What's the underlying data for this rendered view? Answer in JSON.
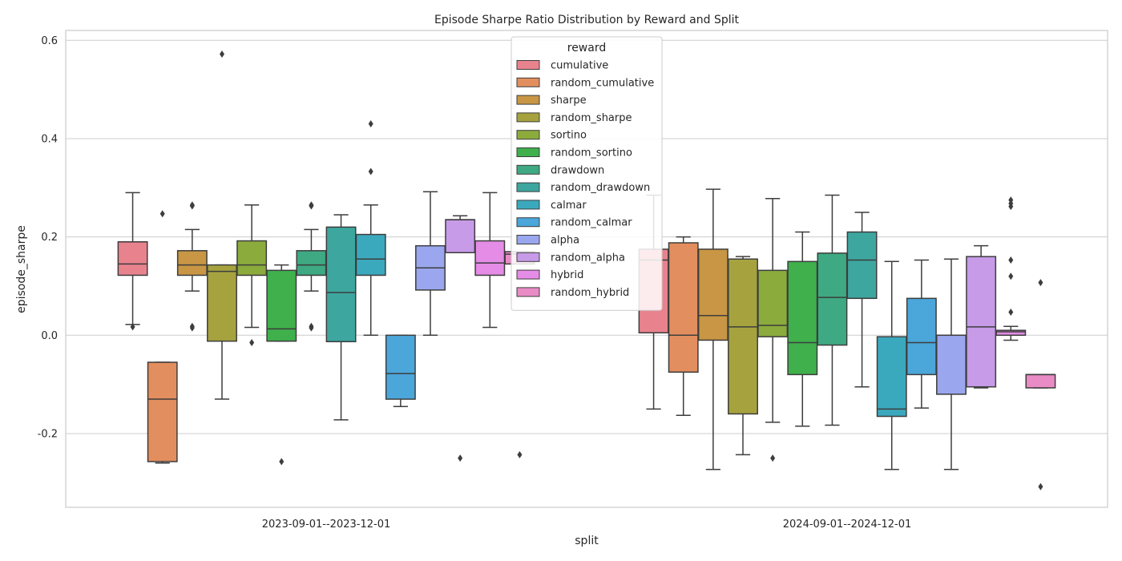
{
  "chart_data": {
    "type": "box",
    "title": "Episode Sharpe Ratio Distribution by Reward and Split",
    "xlabel": "split",
    "ylabel": "episode_sharpe",
    "ylim": [
      -0.35,
      0.62
    ],
    "yticks": [
      -0.2,
      0.0,
      0.2,
      0.4,
      0.6
    ],
    "ytick_labels": [
      "-0.2",
      "0.0",
      "0.2",
      "0.4",
      "0.6"
    ],
    "grid": "horizontal",
    "legend": {
      "title": "reward",
      "position": "top-center"
    },
    "categories": [
      "2023-09-01--2023-12-01",
      "2024-09-01--2024-12-01"
    ],
    "series": [
      {
        "name": "cumulative",
        "color": "#e8838d",
        "boxes": [
          {
            "whislo": 0.022,
            "q1": 0.122,
            "med": 0.145,
            "q3": 0.19,
            "whishi": 0.29,
            "fliers": [
              0.017
            ]
          },
          {
            "whislo": -0.15,
            "q1": 0.005,
            "med": 0.153,
            "q3": 0.175,
            "whishi": 0.285,
            "fliers": []
          }
        ]
      },
      {
        "name": "random_cumulative",
        "color": "#e38e5e",
        "boxes": [
          {
            "whislo": -0.26,
            "q1": -0.257,
            "med": -0.13,
            "q3": -0.055,
            "whishi": -0.055,
            "fliers": [
              0.247
            ]
          },
          {
            "whislo": -0.163,
            "q1": -0.075,
            "med": 0.0,
            "q3": 0.188,
            "whishi": 0.2,
            "fliers": []
          }
        ]
      },
      {
        "name": "sharpe",
        "color": "#c89644",
        "boxes": [
          {
            "whislo": 0.09,
            "q1": 0.122,
            "med": 0.143,
            "q3": 0.172,
            "whishi": 0.215,
            "fliers": [
              0.263,
              0.265,
              0.015,
              0.018
            ]
          },
          {
            "whislo": -0.273,
            "q1": -0.01,
            "med": 0.04,
            "q3": 0.175,
            "whishi": 0.297,
            "fliers": []
          }
        ]
      },
      {
        "name": "random_sharpe",
        "color": "#a6a33f",
        "boxes": [
          {
            "whislo": -0.13,
            "q1": -0.012,
            "med": 0.13,
            "q3": 0.143,
            "whishi": 0.143,
            "fliers": [
              0.572
            ]
          },
          {
            "whislo": -0.243,
            "q1": -0.16,
            "med": 0.017,
            "q3": 0.155,
            "whishi": 0.16,
            "fliers": []
          }
        ]
      },
      {
        "name": "sortino",
        "color": "#8cab3d",
        "boxes": [
          {
            "whislo": 0.016,
            "q1": 0.122,
            "med": 0.143,
            "q3": 0.192,
            "whishi": 0.265,
            "fliers": [
              -0.015
            ]
          },
          {
            "whislo": -0.177,
            "q1": -0.003,
            "med": 0.02,
            "q3": 0.132,
            "whishi": 0.278,
            "fliers": [
              -0.25
            ]
          }
        ]
      },
      {
        "name": "random_sortino",
        "color": "#3fb04c",
        "boxes": [
          {
            "whislo": -0.012,
            "q1": -0.012,
            "med": 0.013,
            "q3": 0.132,
            "whishi": 0.143,
            "fliers": [
              -0.257
            ]
          },
          {
            "whislo": -0.185,
            "q1": -0.08,
            "med": -0.015,
            "q3": 0.15,
            "whishi": 0.21,
            "fliers": []
          }
        ]
      },
      {
        "name": "drawdown",
        "color": "#3ea982",
        "boxes": [
          {
            "whislo": 0.09,
            "q1": 0.122,
            "med": 0.143,
            "q3": 0.172,
            "whishi": 0.215,
            "fliers": [
              0.263,
              0.265,
              0.015,
              0.018
            ]
          },
          {
            "whislo": -0.183,
            "q1": -0.02,
            "med": 0.077,
            "q3": 0.167,
            "whishi": 0.285,
            "fliers": []
          }
        ]
      },
      {
        "name": "random_drawdown",
        "color": "#3da69f",
        "boxes": [
          {
            "whislo": -0.172,
            "q1": -0.013,
            "med": 0.087,
            "q3": 0.22,
            "whishi": 0.245,
            "fliers": []
          },
          {
            "whislo": -0.105,
            "q1": 0.075,
            "med": 0.153,
            "q3": 0.21,
            "whishi": 0.25,
            "fliers": []
          }
        ]
      },
      {
        "name": "calmar",
        "color": "#3ba9bd",
        "boxes": [
          {
            "whislo": 0.0,
            "q1": 0.122,
            "med": 0.155,
            "q3": 0.205,
            "whishi": 0.265,
            "fliers": [
              0.43,
              0.333
            ]
          },
          {
            "whislo": -0.273,
            "q1": -0.165,
            "med": -0.15,
            "q3": -0.003,
            "whishi": 0.15,
            "fliers": []
          }
        ]
      },
      {
        "name": "random_calmar",
        "color": "#4ba6da",
        "boxes": [
          {
            "whislo": -0.145,
            "q1": -0.13,
            "med": -0.078,
            "q3": 0.0,
            "whishi": 0.0,
            "fliers": []
          },
          {
            "whislo": -0.148,
            "q1": -0.08,
            "med": -0.015,
            "q3": 0.075,
            "whishi": 0.153,
            "fliers": []
          }
        ]
      },
      {
        "name": "alpha",
        "color": "#9aa7ee",
        "boxes": [
          {
            "whislo": 0.0,
            "q1": 0.092,
            "med": 0.137,
            "q3": 0.182,
            "whishi": 0.292,
            "fliers": []
          },
          {
            "whislo": -0.273,
            "q1": -0.12,
            "med": 0.0,
            "q3": 0.0,
            "whishi": 0.155,
            "fliers": []
          }
        ]
      },
      {
        "name": "random_alpha",
        "color": "#c79be8",
        "boxes": [
          {
            "whislo": 0.168,
            "q1": 0.168,
            "med": 0.235,
            "q3": 0.235,
            "whishi": 0.243,
            "fliers": [
              -0.25
            ]
          },
          {
            "whislo": -0.107,
            "q1": -0.105,
            "med": 0.017,
            "q3": 0.16,
            "whishi": 0.182,
            "fliers": []
          }
        ]
      },
      {
        "name": "hybrid",
        "color": "#e58ce6",
        "boxes": [
          {
            "whislo": 0.016,
            "q1": 0.122,
            "med": 0.147,
            "q3": 0.192,
            "whishi": 0.29,
            "fliers": []
          },
          {
            "whislo": -0.01,
            "q1": 0.0,
            "med": 0.007,
            "q3": 0.01,
            "whishi": 0.018,
            "fliers": [
              0.275,
              0.268,
              0.262,
              0.153,
              0.12,
              0.047
            ]
          }
        ]
      },
      {
        "name": "random_hybrid",
        "color": "#e98bc5",
        "boxes": [
          {
            "whislo": 0.145,
            "q1": 0.145,
            "med": 0.165,
            "q3": 0.17,
            "whishi": 0.17,
            "fliers": [
              -0.243
            ]
          },
          {
            "whislo": -0.107,
            "q1": -0.107,
            "med": -0.08,
            "q3": -0.08,
            "whishi": -0.08,
            "fliers": [
              0.107,
              -0.308
            ]
          }
        ]
      }
    ]
  }
}
